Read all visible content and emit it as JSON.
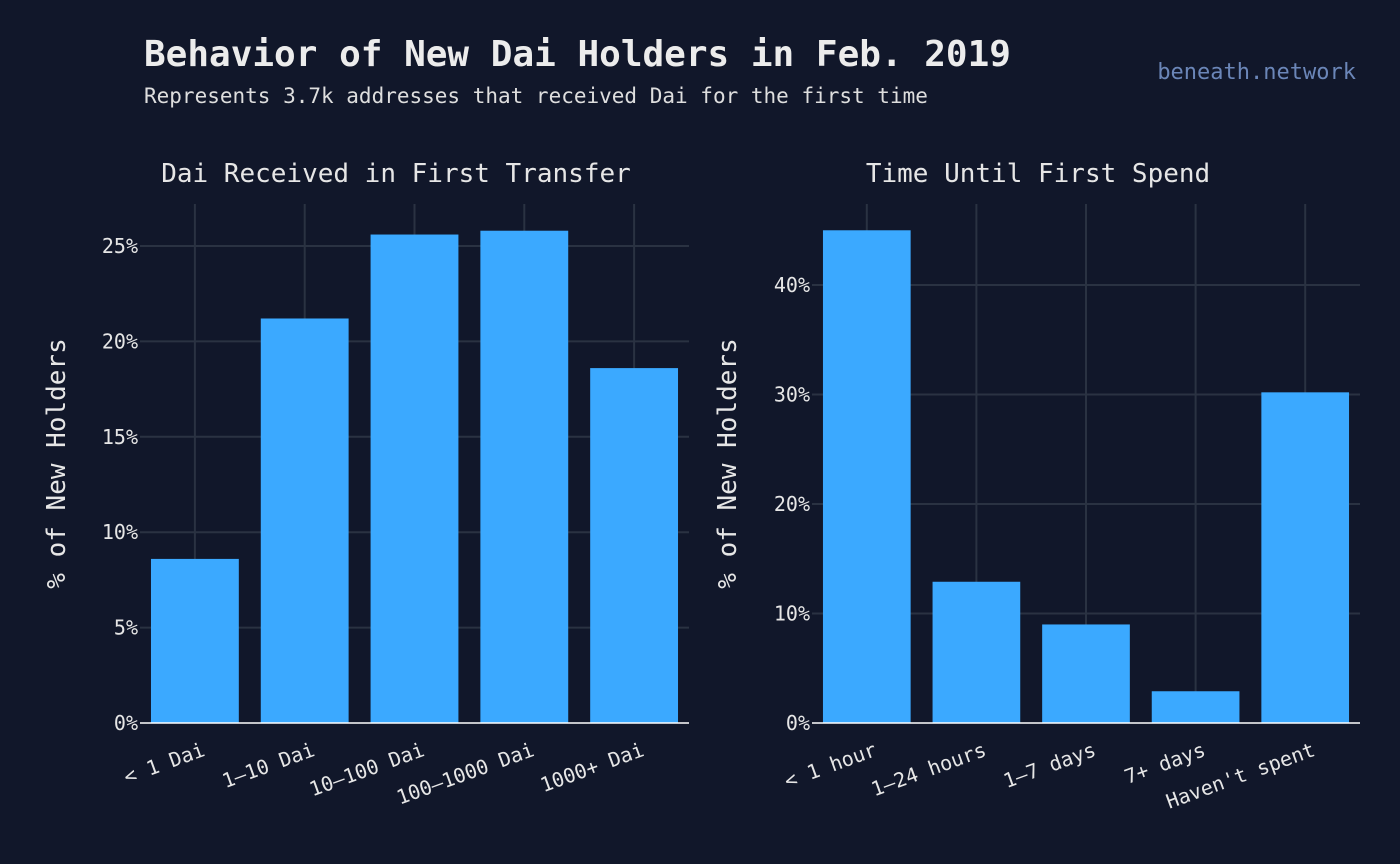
{
  "header": {
    "title": "Behavior of New Dai Holders in Feb. 2019",
    "subtitle": "Represents 3.7k addresses that received Dai for the first time",
    "brand": "beneath.network"
  },
  "colors": {
    "background": "#11172a",
    "bar": "#3ba9ff",
    "grid": "#2a3242",
    "axis": "#ffffff",
    "text": "#e6e6e6",
    "brand": "#6b86b8"
  },
  "chart_data": [
    {
      "type": "bar",
      "title": "Dai Received in First Transfer",
      "xlabel": "",
      "ylabel": "% of New Holders",
      "categories": [
        "< 1 Dai",
        "1–10 Dai",
        "10–100 Dai",
        "100–1000 Dai",
        "1000+ Dai"
      ],
      "values": [
        8.6,
        21.2,
        25.6,
        25.8,
        18.6
      ],
      "ylim": [
        0,
        27.2
      ],
      "yticks": [
        0,
        5,
        10,
        15,
        20,
        25
      ],
      "ytick_labels": [
        "0%",
        "5%",
        "10%",
        "15%",
        "20%",
        "25%"
      ],
      "grid": true
    },
    {
      "type": "bar",
      "title": "Time Until First Spend",
      "xlabel": "",
      "ylabel": "% of New Holders",
      "categories": [
        "< 1 hour",
        "1–24 hours",
        "1–7 days",
        "7+ days",
        "Haven't spent"
      ],
      "values": [
        45.0,
        12.9,
        9.0,
        2.9,
        30.2
      ],
      "ylim": [
        0,
        47.4
      ],
      "yticks": [
        0,
        10,
        20,
        30,
        40
      ],
      "ytick_labels": [
        "0%",
        "10%",
        "20%",
        "30%",
        "40%"
      ],
      "grid": true
    }
  ]
}
